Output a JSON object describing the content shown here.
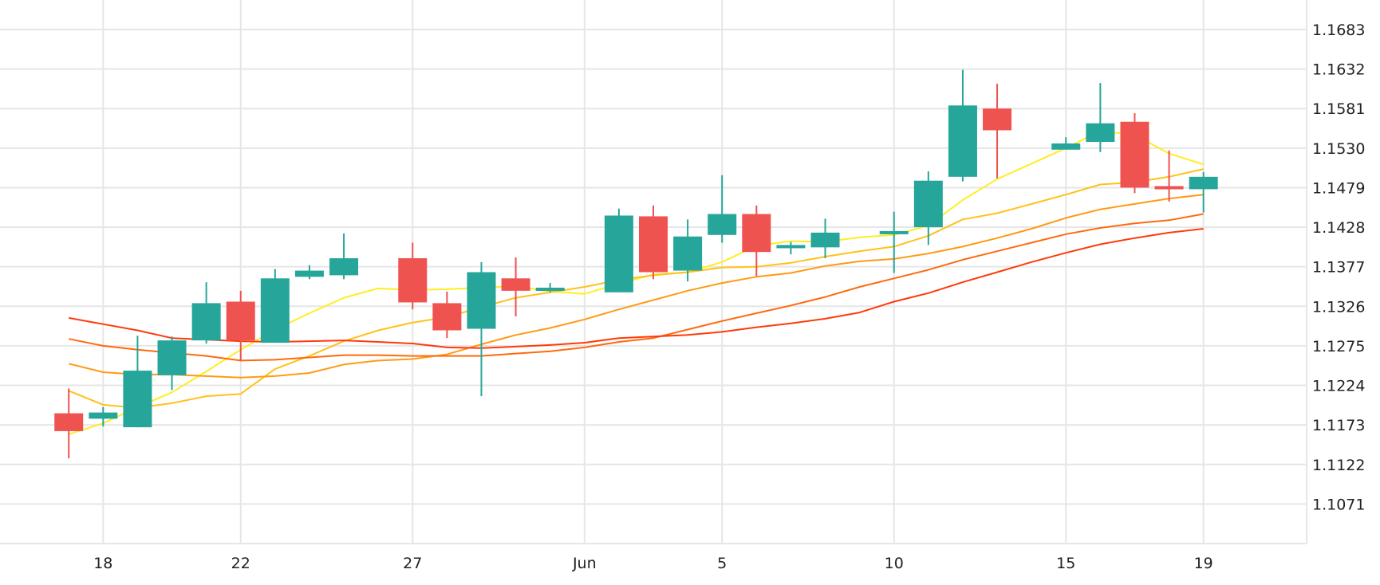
{
  "chart_data": {
    "type": "candlestick",
    "x_tick_labels": [
      {
        "label": "18",
        "date": "2025-05-18"
      },
      {
        "label": "22",
        "date": "2025-05-22"
      },
      {
        "label": "27",
        "date": "2025-05-27"
      },
      {
        "label": "Jun",
        "date": "2025-06-01"
      },
      {
        "label": "5",
        "date": "2025-06-05"
      },
      {
        "label": "10",
        "date": "2025-06-10"
      },
      {
        "label": "15",
        "date": "2025-06-15"
      },
      {
        "label": "19",
        "date": "2025-06-19"
      }
    ],
    "y_ticks": [
      "1.1071",
      "1.1122",
      "1.1173",
      "1.1224",
      "1.1275",
      "1.1326",
      "1.1377",
      "1.1428",
      "1.1479",
      "1.1530",
      "1.1581",
      "1.1632",
      "1.1683"
    ],
    "ylim": [
      1.102,
      1.1721
    ],
    "xlim": [
      "2025-05-15",
      "2025-06-22"
    ],
    "grid": true,
    "up_color": "#26a69a",
    "down_color": "#ef5350",
    "candles": [
      {
        "date": "2025-05-17",
        "open": 1.1188,
        "high": 1.122,
        "low": 1.113,
        "close": 1.1165
      },
      {
        "date": "2025-05-18",
        "open": 1.1181,
        "high": 1.1196,
        "low": 1.1171,
        "close": 1.1189
      },
      {
        "date": "2025-05-19",
        "open": 1.117,
        "high": 1.1288,
        "low": 1.117,
        "close": 1.1243
      },
      {
        "date": "2025-05-20",
        "open": 1.1237,
        "high": 1.1287,
        "low": 1.1218,
        "close": 1.1282
      },
      {
        "date": "2025-05-21",
        "open": 1.1282,
        "high": 1.1357,
        "low": 1.1278,
        "close": 1.133
      },
      {
        "date": "2025-05-22",
        "open": 1.1332,
        "high": 1.1346,
        "low": 1.1256,
        "close": 1.1282
      },
      {
        "date": "2025-05-23",
        "open": 1.1279,
        "high": 1.1374,
        "low": 1.1279,
        "close": 1.1362
      },
      {
        "date": "2025-05-24",
        "open": 1.1364,
        "high": 1.1379,
        "low": 1.1361,
        "close": 1.1372
      },
      {
        "date": "2025-05-25",
        "open": 1.1366,
        "high": 1.142,
        "low": 1.1361,
        "close": 1.1388
      },
      {
        "date": "2025-05-27",
        "open": 1.1388,
        "high": 1.1408,
        "low": 1.1322,
        "close": 1.1331
      },
      {
        "date": "2025-05-28",
        "open": 1.133,
        "high": 1.1345,
        "low": 1.1285,
        "close": 1.1295
      },
      {
        "date": "2025-05-29",
        "open": 1.1297,
        "high": 1.1383,
        "low": 1.121,
        "close": 1.137
      },
      {
        "date": "2025-05-30",
        "open": 1.1362,
        "high": 1.1389,
        "low": 1.1313,
        "close": 1.1346
      },
      {
        "date": "2025-05-31",
        "open": 1.1346,
        "high": 1.1356,
        "low": 1.1344,
        "close": 1.135
      },
      {
        "date": "2025-06-02",
        "open": 1.1344,
        "high": 1.1452,
        "low": 1.1344,
        "close": 1.1443
      },
      {
        "date": "2025-06-03",
        "open": 1.1442,
        "high": 1.1456,
        "low": 1.1361,
        "close": 1.137
      },
      {
        "date": "2025-06-04",
        "open": 1.1372,
        "high": 1.1438,
        "low": 1.1358,
        "close": 1.1416
      },
      {
        "date": "2025-06-05",
        "open": 1.1418,
        "high": 1.1495,
        "low": 1.1408,
        "close": 1.1445
      },
      {
        "date": "2025-06-06",
        "open": 1.1445,
        "high": 1.1456,
        "low": 1.1365,
        "close": 1.1396
      },
      {
        "date": "2025-06-07",
        "open": 1.1401,
        "high": 1.1409,
        "low": 1.1393,
        "close": 1.1405
      },
      {
        "date": "2025-06-08",
        "open": 1.1402,
        "high": 1.1439,
        "low": 1.1388,
        "close": 1.1421
      },
      {
        "date": "2025-06-10",
        "open": 1.1421,
        "high": 1.1448,
        "low": 1.1369,
        "close": 1.1423
      },
      {
        "date": "2025-06-11",
        "open": 1.1428,
        "high": 1.15,
        "low": 1.1405,
        "close": 1.1488
      },
      {
        "date": "2025-06-12",
        "open": 1.1493,
        "high": 1.1631,
        "low": 1.1487,
        "close": 1.1585
      },
      {
        "date": "2025-06-13",
        "open": 1.1581,
        "high": 1.1613,
        "low": 1.1491,
        "close": 1.1553
      },
      {
        "date": "2025-06-15",
        "open": 1.1528,
        "high": 1.1544,
        "low": 1.1528,
        "close": 1.1536
      },
      {
        "date": "2025-06-16",
        "open": 1.1538,
        "high": 1.1614,
        "low": 1.1525,
        "close": 1.1562
      },
      {
        "date": "2025-06-17",
        "open": 1.1564,
        "high": 1.1575,
        "low": 1.1472,
        "close": 1.1479
      },
      {
        "date": "2025-06-18",
        "open": 1.1481,
        "high": 1.1527,
        "low": 1.1461,
        "close": 1.1477
      },
      {
        "date": "2025-06-19",
        "open": 1.1477,
        "high": 1.1499,
        "low": 1.1447,
        "close": 1.1493
      }
    ],
    "lines": [
      {
        "color": "#ffee22",
        "points": [
          [
            "2025-05-17",
            1.1161
          ],
          [
            "2025-05-18",
            1.1175
          ],
          [
            "2025-05-19",
            1.1196
          ],
          [
            "2025-05-20",
            1.1215
          ],
          [
            "2025-05-21",
            1.1242
          ],
          [
            "2025-05-22",
            1.127
          ],
          [
            "2025-05-23",
            1.1296
          ],
          [
            "2025-05-24",
            1.1317
          ],
          [
            "2025-05-25",
            1.1337
          ],
          [
            "2025-05-26",
            1.1349
          ],
          [
            "2025-05-27",
            1.1347
          ],
          [
            "2025-05-28",
            1.1348
          ],
          [
            "2025-05-29",
            1.135
          ],
          [
            "2025-05-30",
            1.1352
          ],
          [
            "2025-05-31",
            1.1345
          ],
          [
            "2025-06-01",
            1.1342
          ],
          [
            "2025-06-02",
            1.1355
          ],
          [
            "2025-06-03",
            1.1367
          ],
          [
            "2025-06-04",
            1.137
          ],
          [
            "2025-06-05",
            1.1383
          ],
          [
            "2025-06-06",
            1.1404
          ],
          [
            "2025-06-07",
            1.141
          ],
          [
            "2025-06-08",
            1.1409
          ],
          [
            "2025-06-09",
            1.1415
          ],
          [
            "2025-06-10",
            1.1418
          ],
          [
            "2025-06-11",
            1.143
          ],
          [
            "2025-06-12",
            1.1463
          ],
          [
            "2025-06-13",
            1.149
          ],
          [
            "2025-06-14",
            1.151
          ],
          [
            "2025-06-15",
            1.153
          ],
          [
            "2025-06-16",
            1.1552
          ],
          [
            "2025-06-17",
            1.1547
          ],
          [
            "2025-06-18",
            1.1523
          ],
          [
            "2025-06-19",
            1.1509
          ]
        ]
      },
      {
        "color": "#ffc21a",
        "points": [
          [
            "2025-05-17",
            1.1217
          ],
          [
            "2025-05-18",
            1.1199
          ],
          [
            "2025-05-19",
            1.1195
          ],
          [
            "2025-05-20",
            1.1201
          ],
          [
            "2025-05-21",
            1.121
          ],
          [
            "2025-05-22",
            1.1213
          ],
          [
            "2025-05-23",
            1.1245
          ],
          [
            "2025-05-24",
            1.1262
          ],
          [
            "2025-05-25",
            1.1281
          ],
          [
            "2025-05-26",
            1.1295
          ],
          [
            "2025-05-27",
            1.1305
          ],
          [
            "2025-05-28",
            1.1312
          ],
          [
            "2025-05-29",
            1.1325
          ],
          [
            "2025-05-30",
            1.1337
          ],
          [
            "2025-05-31",
            1.1344
          ],
          [
            "2025-06-01",
            1.1351
          ],
          [
            "2025-06-02",
            1.136
          ],
          [
            "2025-06-03",
            1.1366
          ],
          [
            "2025-06-04",
            1.137
          ],
          [
            "2025-06-05",
            1.1376
          ],
          [
            "2025-06-06",
            1.1377
          ],
          [
            "2025-06-07",
            1.1382
          ],
          [
            "2025-06-08",
            1.139
          ],
          [
            "2025-06-09",
            1.1397
          ],
          [
            "2025-06-10",
            1.1403
          ],
          [
            "2025-06-11",
            1.1417
          ],
          [
            "2025-06-12",
            1.1438
          ],
          [
            "2025-06-13",
            1.1446
          ],
          [
            "2025-06-14",
            1.1458
          ],
          [
            "2025-06-15",
            1.147
          ],
          [
            "2025-06-16",
            1.1483
          ],
          [
            "2025-06-17",
            1.1486
          ],
          [
            "2025-06-18",
            1.1493
          ],
          [
            "2025-06-19",
            1.1503
          ]
        ]
      },
      {
        "color": "#ff9a14",
        "points": [
          [
            "2025-05-17",
            1.1252
          ],
          [
            "2025-05-18",
            1.1241
          ],
          [
            "2025-05-19",
            1.1238
          ],
          [
            "2025-05-20",
            1.1238
          ],
          [
            "2025-05-21",
            1.1236
          ],
          [
            "2025-05-22",
            1.1234
          ],
          [
            "2025-05-23",
            1.1236
          ],
          [
            "2025-05-24",
            1.124
          ],
          [
            "2025-05-25",
            1.1251
          ],
          [
            "2025-05-26",
            1.1256
          ],
          [
            "2025-05-27",
            1.1258
          ],
          [
            "2025-05-28",
            1.1264
          ],
          [
            "2025-05-29",
            1.1277
          ],
          [
            "2025-05-30",
            1.1289
          ],
          [
            "2025-05-31",
            1.1298
          ],
          [
            "2025-06-01",
            1.1309
          ],
          [
            "2025-06-02",
            1.1322
          ],
          [
            "2025-06-03",
            1.1334
          ],
          [
            "2025-06-04",
            1.1346
          ],
          [
            "2025-06-05",
            1.1356
          ],
          [
            "2025-06-06",
            1.1364
          ],
          [
            "2025-06-07",
            1.1369
          ],
          [
            "2025-06-08",
            1.1378
          ],
          [
            "2025-06-09",
            1.1384
          ],
          [
            "2025-06-10",
            1.1387
          ],
          [
            "2025-06-11",
            1.1394
          ],
          [
            "2025-06-12",
            1.1403
          ],
          [
            "2025-06-13",
            1.1414
          ],
          [
            "2025-06-14",
            1.1426
          ],
          [
            "2025-06-15",
            1.144
          ],
          [
            "2025-06-16",
            1.1451
          ],
          [
            "2025-06-17",
            1.1458
          ],
          [
            "2025-06-18",
            1.1465
          ],
          [
            "2025-06-19",
            1.147
          ]
        ]
      },
      {
        "color": "#ff6a0e",
        "points": [
          [
            "2025-05-17",
            1.1284
          ],
          [
            "2025-05-18",
            1.1275
          ],
          [
            "2025-05-19",
            1.127
          ],
          [
            "2025-05-20",
            1.1266
          ],
          [
            "2025-05-21",
            1.1262
          ],
          [
            "2025-05-22",
            1.1256
          ],
          [
            "2025-05-23",
            1.1257
          ],
          [
            "2025-05-24",
            1.126
          ],
          [
            "2025-05-25",
            1.1263
          ],
          [
            "2025-05-26",
            1.1263
          ],
          [
            "2025-05-27",
            1.1262
          ],
          [
            "2025-05-28",
            1.1262
          ],
          [
            "2025-05-29",
            1.1262
          ],
          [
            "2025-05-30",
            1.1265
          ],
          [
            "2025-05-31",
            1.1268
          ],
          [
            "2025-06-01",
            1.1273
          ],
          [
            "2025-06-02",
            1.128
          ],
          [
            "2025-06-03",
            1.1285
          ],
          [
            "2025-06-04",
            1.1296
          ],
          [
            "2025-06-05",
            1.1307
          ],
          [
            "2025-06-06",
            1.1317
          ],
          [
            "2025-06-07",
            1.1327
          ],
          [
            "2025-06-08",
            1.1338
          ],
          [
            "2025-06-09",
            1.1351
          ],
          [
            "2025-06-10",
            1.1362
          ],
          [
            "2025-06-11",
            1.1373
          ],
          [
            "2025-06-12",
            1.1386
          ],
          [
            "2025-06-13",
            1.1397
          ],
          [
            "2025-06-14",
            1.1408
          ],
          [
            "2025-06-15",
            1.1419
          ],
          [
            "2025-06-16",
            1.1427
          ],
          [
            "2025-06-17",
            1.1433
          ],
          [
            "2025-06-18",
            1.1437
          ],
          [
            "2025-06-19",
            1.1445
          ]
        ]
      },
      {
        "color": "#ff3a0a",
        "points": [
          [
            "2025-05-17",
            1.1311
          ],
          [
            "2025-05-18",
            1.1303
          ],
          [
            "2025-05-19",
            1.1295
          ],
          [
            "2025-05-20",
            1.1285
          ],
          [
            "2025-05-21",
            1.1283
          ],
          [
            "2025-05-22",
            1.1281
          ],
          [
            "2025-05-23",
            1.128
          ],
          [
            "2025-05-24",
            1.1281
          ],
          [
            "2025-05-25",
            1.1282
          ],
          [
            "2025-05-26",
            1.128
          ],
          [
            "2025-05-27",
            1.1278
          ],
          [
            "2025-05-28",
            1.1273
          ],
          [
            "2025-05-29",
            1.1272
          ],
          [
            "2025-05-30",
            1.1274
          ],
          [
            "2025-05-31",
            1.1276
          ],
          [
            "2025-06-01",
            1.1279
          ],
          [
            "2025-06-02",
            1.1285
          ],
          [
            "2025-06-03",
            1.1287
          ],
          [
            "2025-06-04",
            1.1289
          ],
          [
            "2025-06-05",
            1.1293
          ],
          [
            "2025-06-06",
            1.1299
          ],
          [
            "2025-06-07",
            1.1304
          ],
          [
            "2025-06-08",
            1.131
          ],
          [
            "2025-06-09",
            1.1318
          ],
          [
            "2025-06-10",
            1.1332
          ],
          [
            "2025-06-11",
            1.1343
          ],
          [
            "2025-06-12",
            1.1357
          ],
          [
            "2025-06-13",
            1.137
          ],
          [
            "2025-06-14",
            1.1383
          ],
          [
            "2025-06-15",
            1.1395
          ],
          [
            "2025-06-16",
            1.1406
          ],
          [
            "2025-06-17",
            1.1414
          ],
          [
            "2025-06-18",
            1.1421
          ],
          [
            "2025-06-19",
            1.1426
          ]
        ]
      }
    ]
  }
}
